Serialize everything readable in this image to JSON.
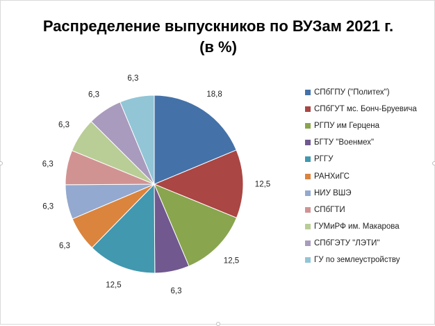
{
  "chart_data": {
    "type": "pie",
    "title": "Распределение выпускников по ВУЗам 2021 г.",
    "subtitle": "(в %)",
    "legend_position": "right",
    "slices": [
      {
        "label": "СПбГПУ (\"Политех\")",
        "value": 18.8,
        "value_label": "18,8",
        "color": "#4472a8"
      },
      {
        "label": "СПбГУТ мс. Бонч-Бруевича",
        "value": 12.5,
        "value_label": "12,5",
        "color": "#aa4643"
      },
      {
        "label": "РГПУ им Герцена",
        "value": 12.5,
        "value_label": "12,5",
        "color": "#89a54e"
      },
      {
        "label": "БГТУ \"Военмех\"",
        "value": 6.3,
        "value_label": "6,3",
        "color": "#71588f"
      },
      {
        "label": "РГГУ",
        "value": 12.5,
        "value_label": "12,5",
        "color": "#4198af"
      },
      {
        "label": "РАНХиГС",
        "value": 6.3,
        "value_label": "6,3",
        "color": "#db843d"
      },
      {
        "label": "НИУ ВШЭ",
        "value": 6.3,
        "value_label": "6,3",
        "color": "#93a9cf"
      },
      {
        "label": "СПбГТИ",
        "value": 6.3,
        "value_label": "6,3",
        "color": "#d19392"
      },
      {
        "label": "ГУМиРФ им. Макарова",
        "value": 6.3,
        "value_label": "6,3",
        "color": "#b9cd96"
      },
      {
        "label": "СПбГЭТУ \"ЛЭТИ\"",
        "value": 6.3,
        "value_label": "6,3",
        "color": "#a99bbd"
      },
      {
        "label": "ГУ по землеустройству",
        "value": 6.3,
        "value_label": "6,3",
        "color": "#92c5d6"
      }
    ]
  }
}
